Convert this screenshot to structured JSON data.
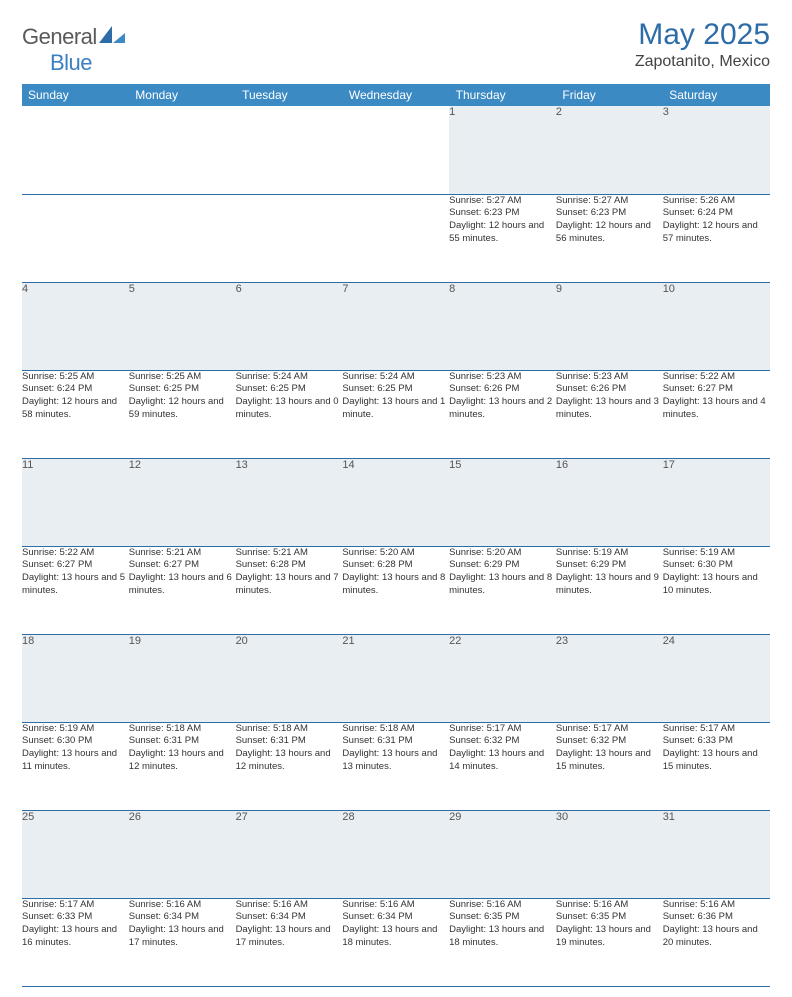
{
  "brand": {
    "part1": "General",
    "part2": "Blue"
  },
  "title": "May 2025",
  "location": "Zapotanito, Mexico",
  "colors": {
    "header_bg": "#3b8ac4",
    "header_text": "#ffffff",
    "title_color": "#2e6ca8",
    "daynum_bg": "#e9eef2",
    "border": "#2e6ca8",
    "logo_gray": "#5a5a5a",
    "logo_blue": "#3b7fc4"
  },
  "fonts": {
    "title_size": 30,
    "location_size": 16,
    "header_size": 12,
    "daynum_size": 11,
    "cell_size": 9.5
  },
  "day_headers": [
    "Sunday",
    "Monday",
    "Tuesday",
    "Wednesday",
    "Thursday",
    "Friday",
    "Saturday"
  ],
  "weeks": [
    [
      null,
      null,
      null,
      null,
      {
        "n": "1",
        "sr": "5:27 AM",
        "ss": "6:23 PM",
        "dl": "12 hours and 55 minutes."
      },
      {
        "n": "2",
        "sr": "5:27 AM",
        "ss": "6:23 PM",
        "dl": "12 hours and 56 minutes."
      },
      {
        "n": "3",
        "sr": "5:26 AM",
        "ss": "6:24 PM",
        "dl": "12 hours and 57 minutes."
      }
    ],
    [
      {
        "n": "4",
        "sr": "5:25 AM",
        "ss": "6:24 PM",
        "dl": "12 hours and 58 minutes."
      },
      {
        "n": "5",
        "sr": "5:25 AM",
        "ss": "6:25 PM",
        "dl": "12 hours and 59 minutes."
      },
      {
        "n": "6",
        "sr": "5:24 AM",
        "ss": "6:25 PM",
        "dl": "13 hours and 0 minutes."
      },
      {
        "n": "7",
        "sr": "5:24 AM",
        "ss": "6:25 PM",
        "dl": "13 hours and 1 minute."
      },
      {
        "n": "8",
        "sr": "5:23 AM",
        "ss": "6:26 PM",
        "dl": "13 hours and 2 minutes."
      },
      {
        "n": "9",
        "sr": "5:23 AM",
        "ss": "6:26 PM",
        "dl": "13 hours and 3 minutes."
      },
      {
        "n": "10",
        "sr": "5:22 AM",
        "ss": "6:27 PM",
        "dl": "13 hours and 4 minutes."
      }
    ],
    [
      {
        "n": "11",
        "sr": "5:22 AM",
        "ss": "6:27 PM",
        "dl": "13 hours and 5 minutes."
      },
      {
        "n": "12",
        "sr": "5:21 AM",
        "ss": "6:27 PM",
        "dl": "13 hours and 6 minutes."
      },
      {
        "n": "13",
        "sr": "5:21 AM",
        "ss": "6:28 PM",
        "dl": "13 hours and 7 minutes."
      },
      {
        "n": "14",
        "sr": "5:20 AM",
        "ss": "6:28 PM",
        "dl": "13 hours and 8 minutes."
      },
      {
        "n": "15",
        "sr": "5:20 AM",
        "ss": "6:29 PM",
        "dl": "13 hours and 8 minutes."
      },
      {
        "n": "16",
        "sr": "5:19 AM",
        "ss": "6:29 PM",
        "dl": "13 hours and 9 minutes."
      },
      {
        "n": "17",
        "sr": "5:19 AM",
        "ss": "6:30 PM",
        "dl": "13 hours and 10 minutes."
      }
    ],
    [
      {
        "n": "18",
        "sr": "5:19 AM",
        "ss": "6:30 PM",
        "dl": "13 hours and 11 minutes."
      },
      {
        "n": "19",
        "sr": "5:18 AM",
        "ss": "6:31 PM",
        "dl": "13 hours and 12 minutes."
      },
      {
        "n": "20",
        "sr": "5:18 AM",
        "ss": "6:31 PM",
        "dl": "13 hours and 12 minutes."
      },
      {
        "n": "21",
        "sr": "5:18 AM",
        "ss": "6:31 PM",
        "dl": "13 hours and 13 minutes."
      },
      {
        "n": "22",
        "sr": "5:17 AM",
        "ss": "6:32 PM",
        "dl": "13 hours and 14 minutes."
      },
      {
        "n": "23",
        "sr": "5:17 AM",
        "ss": "6:32 PM",
        "dl": "13 hours and 15 minutes."
      },
      {
        "n": "24",
        "sr": "5:17 AM",
        "ss": "6:33 PM",
        "dl": "13 hours and 15 minutes."
      }
    ],
    [
      {
        "n": "25",
        "sr": "5:17 AM",
        "ss": "6:33 PM",
        "dl": "13 hours and 16 minutes."
      },
      {
        "n": "26",
        "sr": "5:16 AM",
        "ss": "6:34 PM",
        "dl": "13 hours and 17 minutes."
      },
      {
        "n": "27",
        "sr": "5:16 AM",
        "ss": "6:34 PM",
        "dl": "13 hours and 17 minutes."
      },
      {
        "n": "28",
        "sr": "5:16 AM",
        "ss": "6:34 PM",
        "dl": "13 hours and 18 minutes."
      },
      {
        "n": "29",
        "sr": "5:16 AM",
        "ss": "6:35 PM",
        "dl": "13 hours and 18 minutes."
      },
      {
        "n": "30",
        "sr": "5:16 AM",
        "ss": "6:35 PM",
        "dl": "13 hours and 19 minutes."
      },
      {
        "n": "31",
        "sr": "5:16 AM",
        "ss": "6:36 PM",
        "dl": "13 hours and 20 minutes."
      }
    ]
  ],
  "labels": {
    "sunrise": "Sunrise:",
    "sunset": "Sunset:",
    "daylight": "Daylight:"
  }
}
